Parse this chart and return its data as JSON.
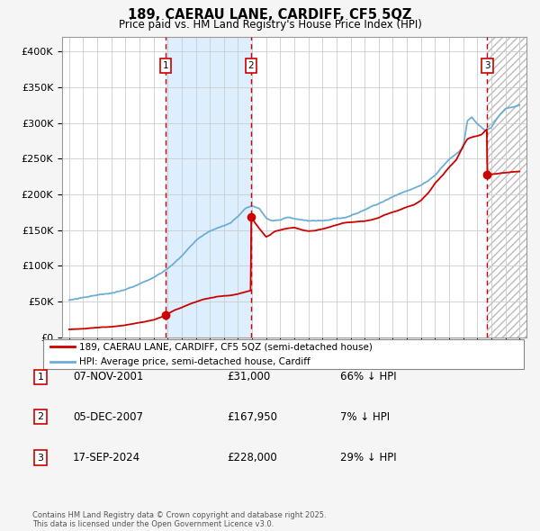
{
  "title": "189, CAERAU LANE, CARDIFF, CF5 5QZ",
  "subtitle": "Price paid vs. HM Land Registry's House Price Index (HPI)",
  "legend_line1": "189, CAERAU LANE, CARDIFF, CF5 5QZ (semi-detached house)",
  "legend_line2": "HPI: Average price, semi-detached house, Cardiff",
  "sale1_date": "07-NOV-2001",
  "sale1_price": 31000,
  "sale1_hpi": "66% ↓ HPI",
  "sale2_date": "05-DEC-2007",
  "sale2_price": 167950,
  "sale2_hpi": "7% ↓ HPI",
  "sale3_date": "17-SEP-2024",
  "sale3_price": 228000,
  "sale3_hpi": "29% ↓ HPI",
  "copyright": "Contains HM Land Registry data © Crown copyright and database right 2025.\nThis data is licensed under the Open Government Licence v3.0.",
  "hpi_color": "#6baed6",
  "price_color": "#cc0000",
  "bg_color": "#f5f5f5",
  "plot_bg": "#ffffff",
  "shade_color": "#ddeeff",
  "grid_color": "#cccccc",
  "ylim": [
    0,
    420000
  ],
  "xmin": 1994.5,
  "xmax": 2027.5,
  "sale1_x": 2001.85,
  "sale2_x": 2007.92,
  "sale3_x": 2024.71
}
